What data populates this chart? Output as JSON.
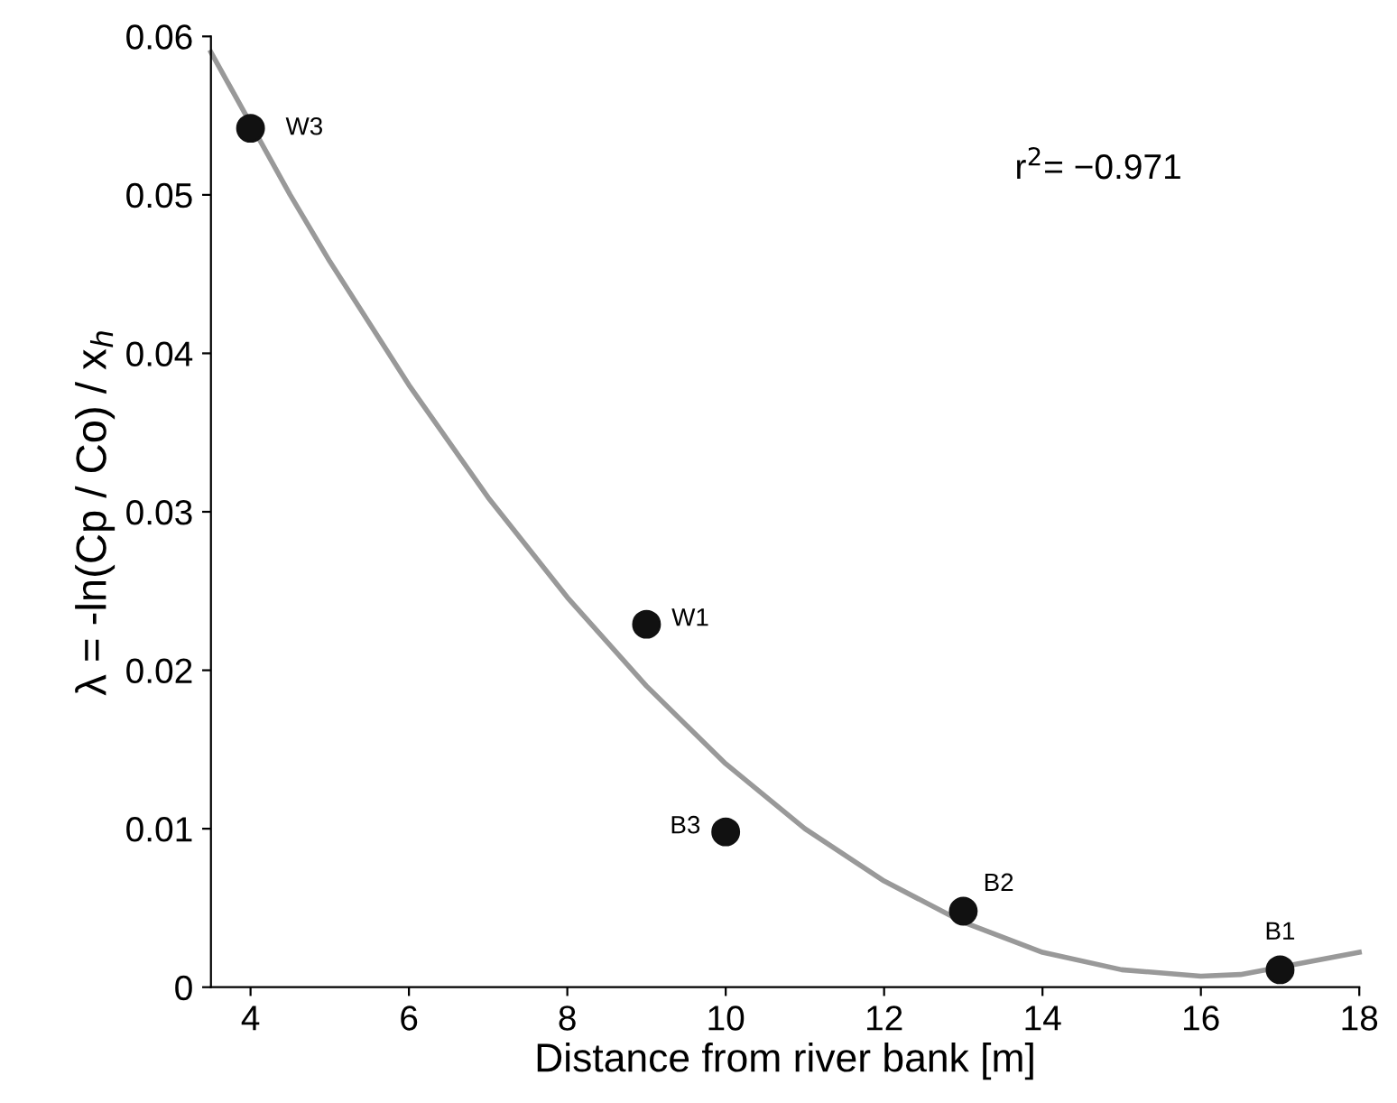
{
  "chart_data": {
    "type": "scatter",
    "xlabel": "Distance from river bank [m]",
    "ylabel": "λ = -ln(Cp / Co) / x$_{h}$",
    "xlim": [
      3.5,
      18
    ],
    "ylim": [
      0,
      0.06
    ],
    "xticks": [
      4,
      6,
      8,
      10,
      12,
      14,
      16,
      18
    ],
    "yticks": [
      {
        "value": 0,
        "label": "0"
      },
      0.01,
      0.02,
      0.03,
      0.04,
      0.05,
      0.06
    ],
    "grid": false,
    "legend": false,
    "marker": "circle",
    "series": [
      {
        "color": "#111111",
        "x": [
          4,
          9,
          10,
          13,
          17
        ],
        "values": [
          0.0542,
          0.0229,
          0.0098,
          0.0048,
          0.0011
        ]
      },
      {
        "type": "line",
        "color": "#999999",
        "line_style": "solid",
        "marker": "none",
        "x": [
          3.5,
          4.5,
          5,
          6,
          7,
          8,
          9,
          10,
          11,
          12,
          13,
          14,
          15,
          16,
          16.5,
          18
        ],
        "values": [
          0.059,
          0.05,
          0.0458,
          0.038,
          0.0309,
          0.0246,
          0.019,
          0.0141,
          0.01,
          0.0067,
          0.0041,
          0.0022,
          0.0011,
          0.0007,
          0.0008,
          0.0022
        ]
      }
    ],
    "annotations": [
      {
        "text": "W3",
        "x": 4,
        "y": 0.0542
      },
      {
        "text": "W1",
        "x": 9,
        "y": 0.0229
      },
      {
        "text": "B3",
        "x": 10,
        "y": 0.0098
      },
      {
        "text": "B2",
        "x": 13,
        "y": 0.0048
      },
      {
        "text": "B1",
        "x": 17,
        "y": 0.0011
      },
      "r$^{2}$= −0.971"
    ]
  }
}
